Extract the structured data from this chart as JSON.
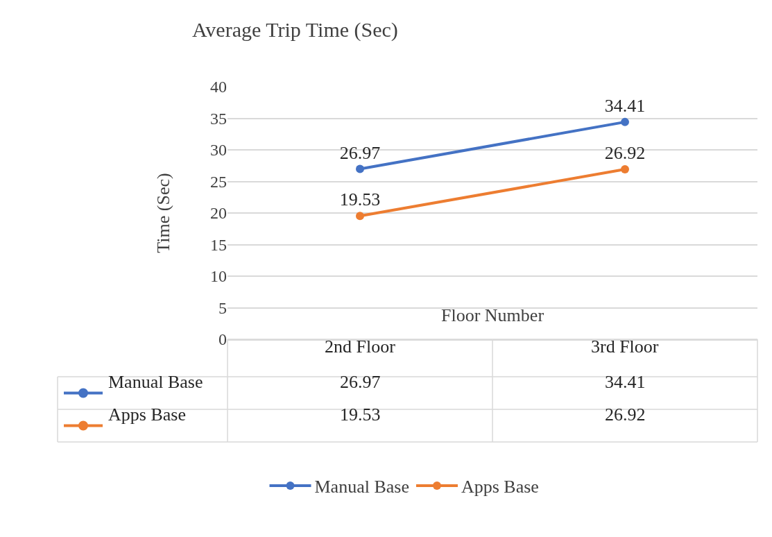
{
  "chart_data": {
    "type": "line",
    "title": "Average Trip Time (Sec)",
    "xlabel": "Floor Number",
    "ylabel": "Time (Sec)",
    "categories": [
      "2nd Floor",
      "3rd Floor"
    ],
    "series": [
      {
        "name": "Manual Base",
        "color": "#4472c4",
        "values": [
          26.97,
          34.41
        ]
      },
      {
        "name": "Apps Base",
        "color": "#ed7d31",
        "values": [
          19.53,
          26.92
        ]
      }
    ],
    "annotations": [
      "26.97",
      "34.41",
      "19.53",
      "26.92"
    ],
    "ylim": [
      0,
      40
    ],
    "yticks": [
      0,
      5,
      10,
      15,
      20,
      25,
      30,
      35,
      40
    ],
    "grid": "y",
    "legend": "bottom",
    "marker": "circle",
    "line_style": "solid",
    "data_labels": true
  }
}
